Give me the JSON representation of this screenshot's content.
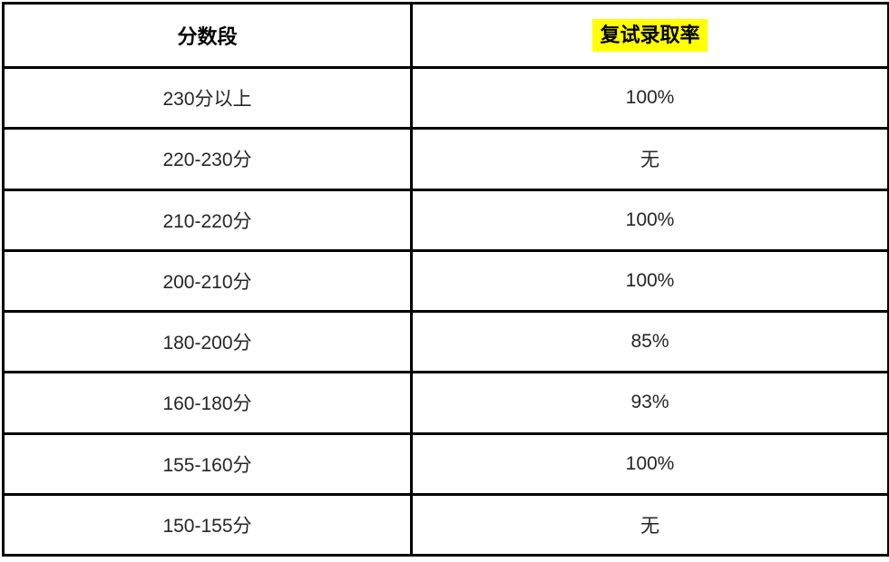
{
  "table": {
    "headers": [
      {
        "label": "分数段",
        "highlight": false
      },
      {
        "label": "复试录取率",
        "highlight": true
      }
    ],
    "rows": [
      {
        "range": "230分以上",
        "rate": "100%"
      },
      {
        "range": "220-230分",
        "rate": "无"
      },
      {
        "range": "210-220分",
        "rate": "100%"
      },
      {
        "range": "200-210分",
        "rate": "100%"
      },
      {
        "range": "180-200分",
        "rate": "85%"
      },
      {
        "range": "160-180分",
        "rate": "93%"
      },
      {
        "range": "155-160分",
        "rate": "100%"
      },
      {
        "range": "150-155分",
        "rate": "无"
      }
    ],
    "colors": {
      "highlight": "#ffff00",
      "border": "#000000",
      "text": "#262626"
    }
  },
  "chart_data": {
    "type": "table",
    "columns": [
      "分数段",
      "复试录取率"
    ],
    "records": [
      [
        "230分以上",
        "100%"
      ],
      [
        "220-230分",
        "无"
      ],
      [
        "210-220分",
        "100%"
      ],
      [
        "200-210分",
        "100%"
      ],
      [
        "180-200分",
        "85%"
      ],
      [
        "160-180分",
        "93%"
      ],
      [
        "155-160分",
        "100%"
      ],
      [
        "150-155分",
        "无"
      ]
    ]
  }
}
